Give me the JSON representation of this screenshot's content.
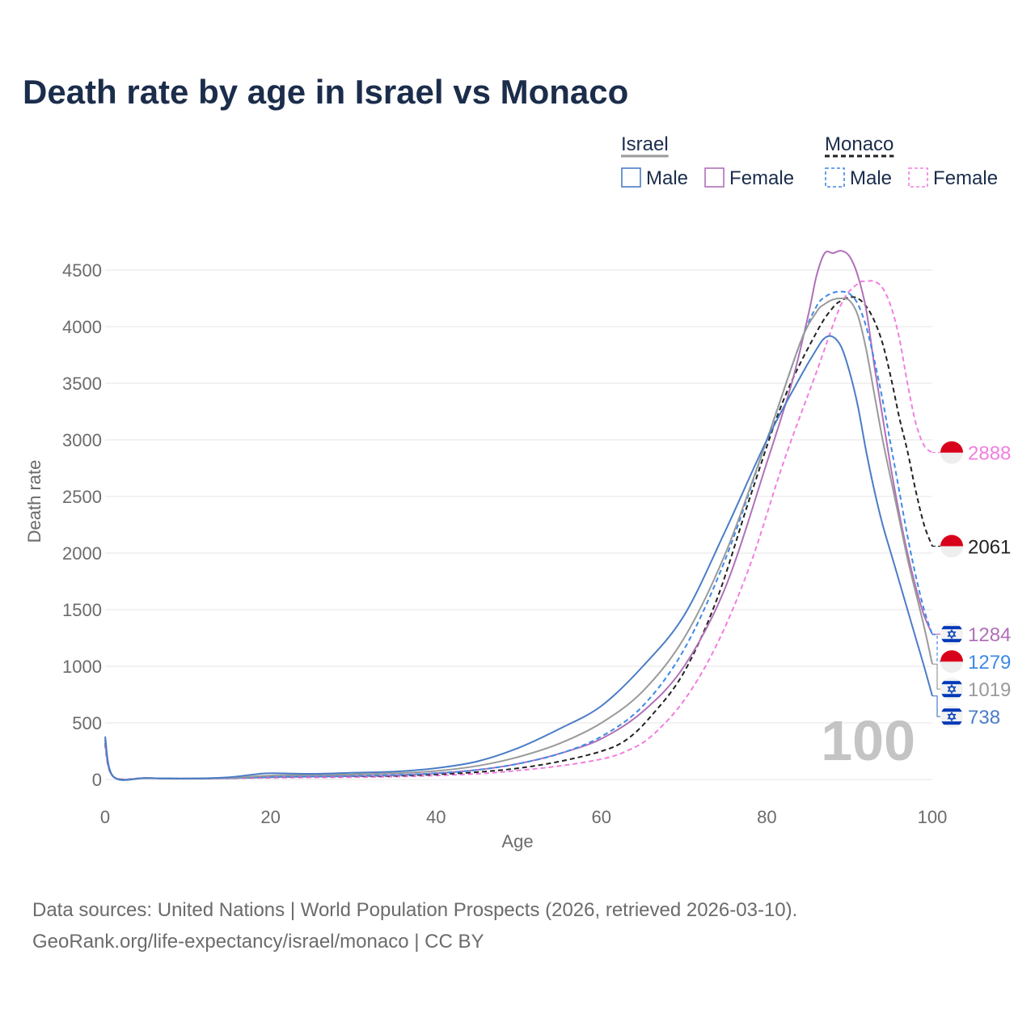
{
  "title": "Death rate by age in Israel vs Monaco",
  "footer": {
    "line1": "Data sources: United Nations | World Population Prospects (2026, retrieved 2026-03-10).",
    "line2": "GeoRank.org/life-expectancy/israel/monaco | CC BY"
  },
  "legend": {
    "groups": [
      {
        "name": "Israel",
        "underline_color": "#9a9a9a",
        "underline_dashed": false,
        "items": [
          {
            "label": "Male",
            "color": "#4a7cc7",
            "dashed": false
          },
          {
            "label": "Female",
            "color": "#b070b8",
            "dashed": false
          }
        ]
      },
      {
        "name": "Monaco",
        "underline_color": "#222222",
        "underline_dashed": true,
        "items": [
          {
            "label": "Male",
            "color": "#3d8ae6",
            "dashed": true
          },
          {
            "label": "Female",
            "color": "#f27ee0",
            "dashed": true
          }
        ]
      }
    ]
  },
  "chart_data": {
    "type": "line",
    "title": "Death rate by age in Israel vs Monaco",
    "xlabel": "Age",
    "ylabel": "Death rate",
    "xlim": [
      0,
      100
    ],
    "ylim": [
      0,
      4500
    ],
    "xticks": [
      "0",
      "20",
      "40",
      "60",
      "80",
      "100"
    ],
    "yticks": [
      "0",
      "500",
      "1000",
      "1500",
      "2000",
      "2500",
      "3000",
      "3500",
      "4000",
      "4500"
    ],
    "grid": true,
    "watermark": "100",
    "series": [
      {
        "name": "Monaco Female",
        "country": "Monaco",
        "color": "#f27ee0",
        "dashed": true,
        "end_value": "2888",
        "x": [
          0,
          1,
          5,
          10,
          15,
          20,
          25,
          30,
          35,
          40,
          45,
          50,
          55,
          60,
          63,
          66,
          70,
          74,
          78,
          82,
          86,
          89,
          91,
          92,
          93,
          94,
          95,
          96,
          97,
          98,
          99,
          100
        ],
        "y": [
          300,
          25,
          12,
          8,
          10,
          15,
          18,
          20,
          25,
          35,
          50,
          80,
          120,
          180,
          250,
          380,
          700,
          1200,
          1900,
          2800,
          3600,
          4200,
          4380,
          4400,
          4400,
          4340,
          4180,
          3900,
          3500,
          3150,
          2950,
          2888
        ]
      },
      {
        "name": "Monaco Total",
        "country": "Monaco",
        "color": "#222222",
        "dashed": true,
        "end_value": "2061",
        "x": [
          0,
          1,
          5,
          10,
          15,
          20,
          25,
          30,
          35,
          40,
          45,
          50,
          55,
          60,
          63,
          66,
          70,
          74,
          78,
          82,
          86,
          88,
          89,
          90,
          91,
          92,
          93,
          94,
          95,
          96,
          97,
          98,
          99,
          100
        ],
        "y": [
          320,
          25,
          12,
          8,
          12,
          20,
          25,
          28,
          32,
          45,
          65,
          100,
          160,
          250,
          350,
          560,
          950,
          1600,
          2500,
          3350,
          3950,
          4170,
          4230,
          4260,
          4250,
          4180,
          4050,
          3850,
          3550,
          3200,
          2900,
          2550,
          2250,
          2061
        ]
      },
      {
        "name": "Israel Female",
        "country": "Israel",
        "color": "#b070b8",
        "dashed": false,
        "end_value": "1284",
        "x": [
          0,
          1,
          5,
          10,
          15,
          20,
          25,
          30,
          35,
          40,
          45,
          50,
          55,
          60,
          65,
          70,
          75,
          80,
          83,
          85,
          86,
          87,
          88,
          89,
          90,
          91,
          92,
          93,
          94,
          95,
          96,
          97,
          98,
          99,
          100
        ],
        "y": [
          350,
          25,
          12,
          8,
          12,
          20,
          25,
          30,
          38,
          55,
          85,
          140,
          230,
          360,
          600,
          1000,
          1700,
          2800,
          3500,
          4100,
          4450,
          4650,
          4650,
          4670,
          4620,
          4450,
          4150,
          3650,
          3200,
          2750,
          2350,
          2000,
          1700,
          1450,
          1284
        ]
      },
      {
        "name": "Monaco Male",
        "country": "Monaco",
        "color": "#3d8ae6",
        "dashed": true,
        "end_value": "1279",
        "x": [
          0,
          1,
          5,
          10,
          15,
          20,
          25,
          30,
          35,
          40,
          45,
          50,
          55,
          60,
          65,
          70,
          75,
          80,
          84,
          86,
          87,
          88,
          89,
          90,
          91,
          92,
          93,
          94,
          95,
          96,
          97,
          98,
          99,
          100
        ],
        "y": [
          340,
          25,
          12,
          8,
          12,
          22,
          28,
          32,
          40,
          55,
          85,
          140,
          230,
          380,
          650,
          1150,
          1950,
          3000,
          3850,
          4180,
          4260,
          4300,
          4310,
          4290,
          4200,
          4000,
          3700,
          3350,
          2950,
          2550,
          2150,
          1800,
          1500,
          1279
        ]
      },
      {
        "name": "Israel Total",
        "country": "Israel",
        "color": "#9a9a9a",
        "dashed": false,
        "end_value": "1019",
        "x": [
          0,
          1,
          5,
          10,
          15,
          20,
          25,
          30,
          35,
          40,
          45,
          50,
          55,
          60,
          65,
          70,
          75,
          80,
          84,
          86,
          87,
          88,
          89,
          90,
          91,
          92,
          93,
          94,
          95,
          96,
          97,
          98,
          99,
          100
        ],
        "y": [
          360,
          25,
          12,
          8,
          15,
          35,
          40,
          45,
          55,
          75,
          120,
          200,
          320,
          500,
          780,
          1250,
          2000,
          3000,
          3850,
          4130,
          4200,
          4240,
          4250,
          4230,
          4100,
          3800,
          3400,
          3000,
          2650,
          2300,
          1950,
          1650,
          1350,
          1019
        ]
      },
      {
        "name": "Israel Male",
        "country": "Israel",
        "color": "#4a7cc7",
        "dashed": false,
        "end_value": "738",
        "x": [
          0,
          1,
          5,
          10,
          15,
          18,
          20,
          25,
          30,
          35,
          40,
          45,
          50,
          55,
          60,
          65,
          70,
          75,
          80,
          84,
          86,
          87,
          88,
          89,
          90,
          91,
          92,
          93,
          94,
          95,
          96,
          97,
          98,
          99,
          100
        ],
        "y": [
          380,
          25,
          12,
          8,
          20,
          45,
          55,
          50,
          60,
          70,
          100,
          160,
          280,
          450,
          650,
          1000,
          1450,
          2200,
          3000,
          3550,
          3800,
          3900,
          3910,
          3820,
          3600,
          3300,
          2900,
          2550,
          2250,
          2000,
          1750,
          1500,
          1250,
          1000,
          738
        ]
      }
    ]
  }
}
